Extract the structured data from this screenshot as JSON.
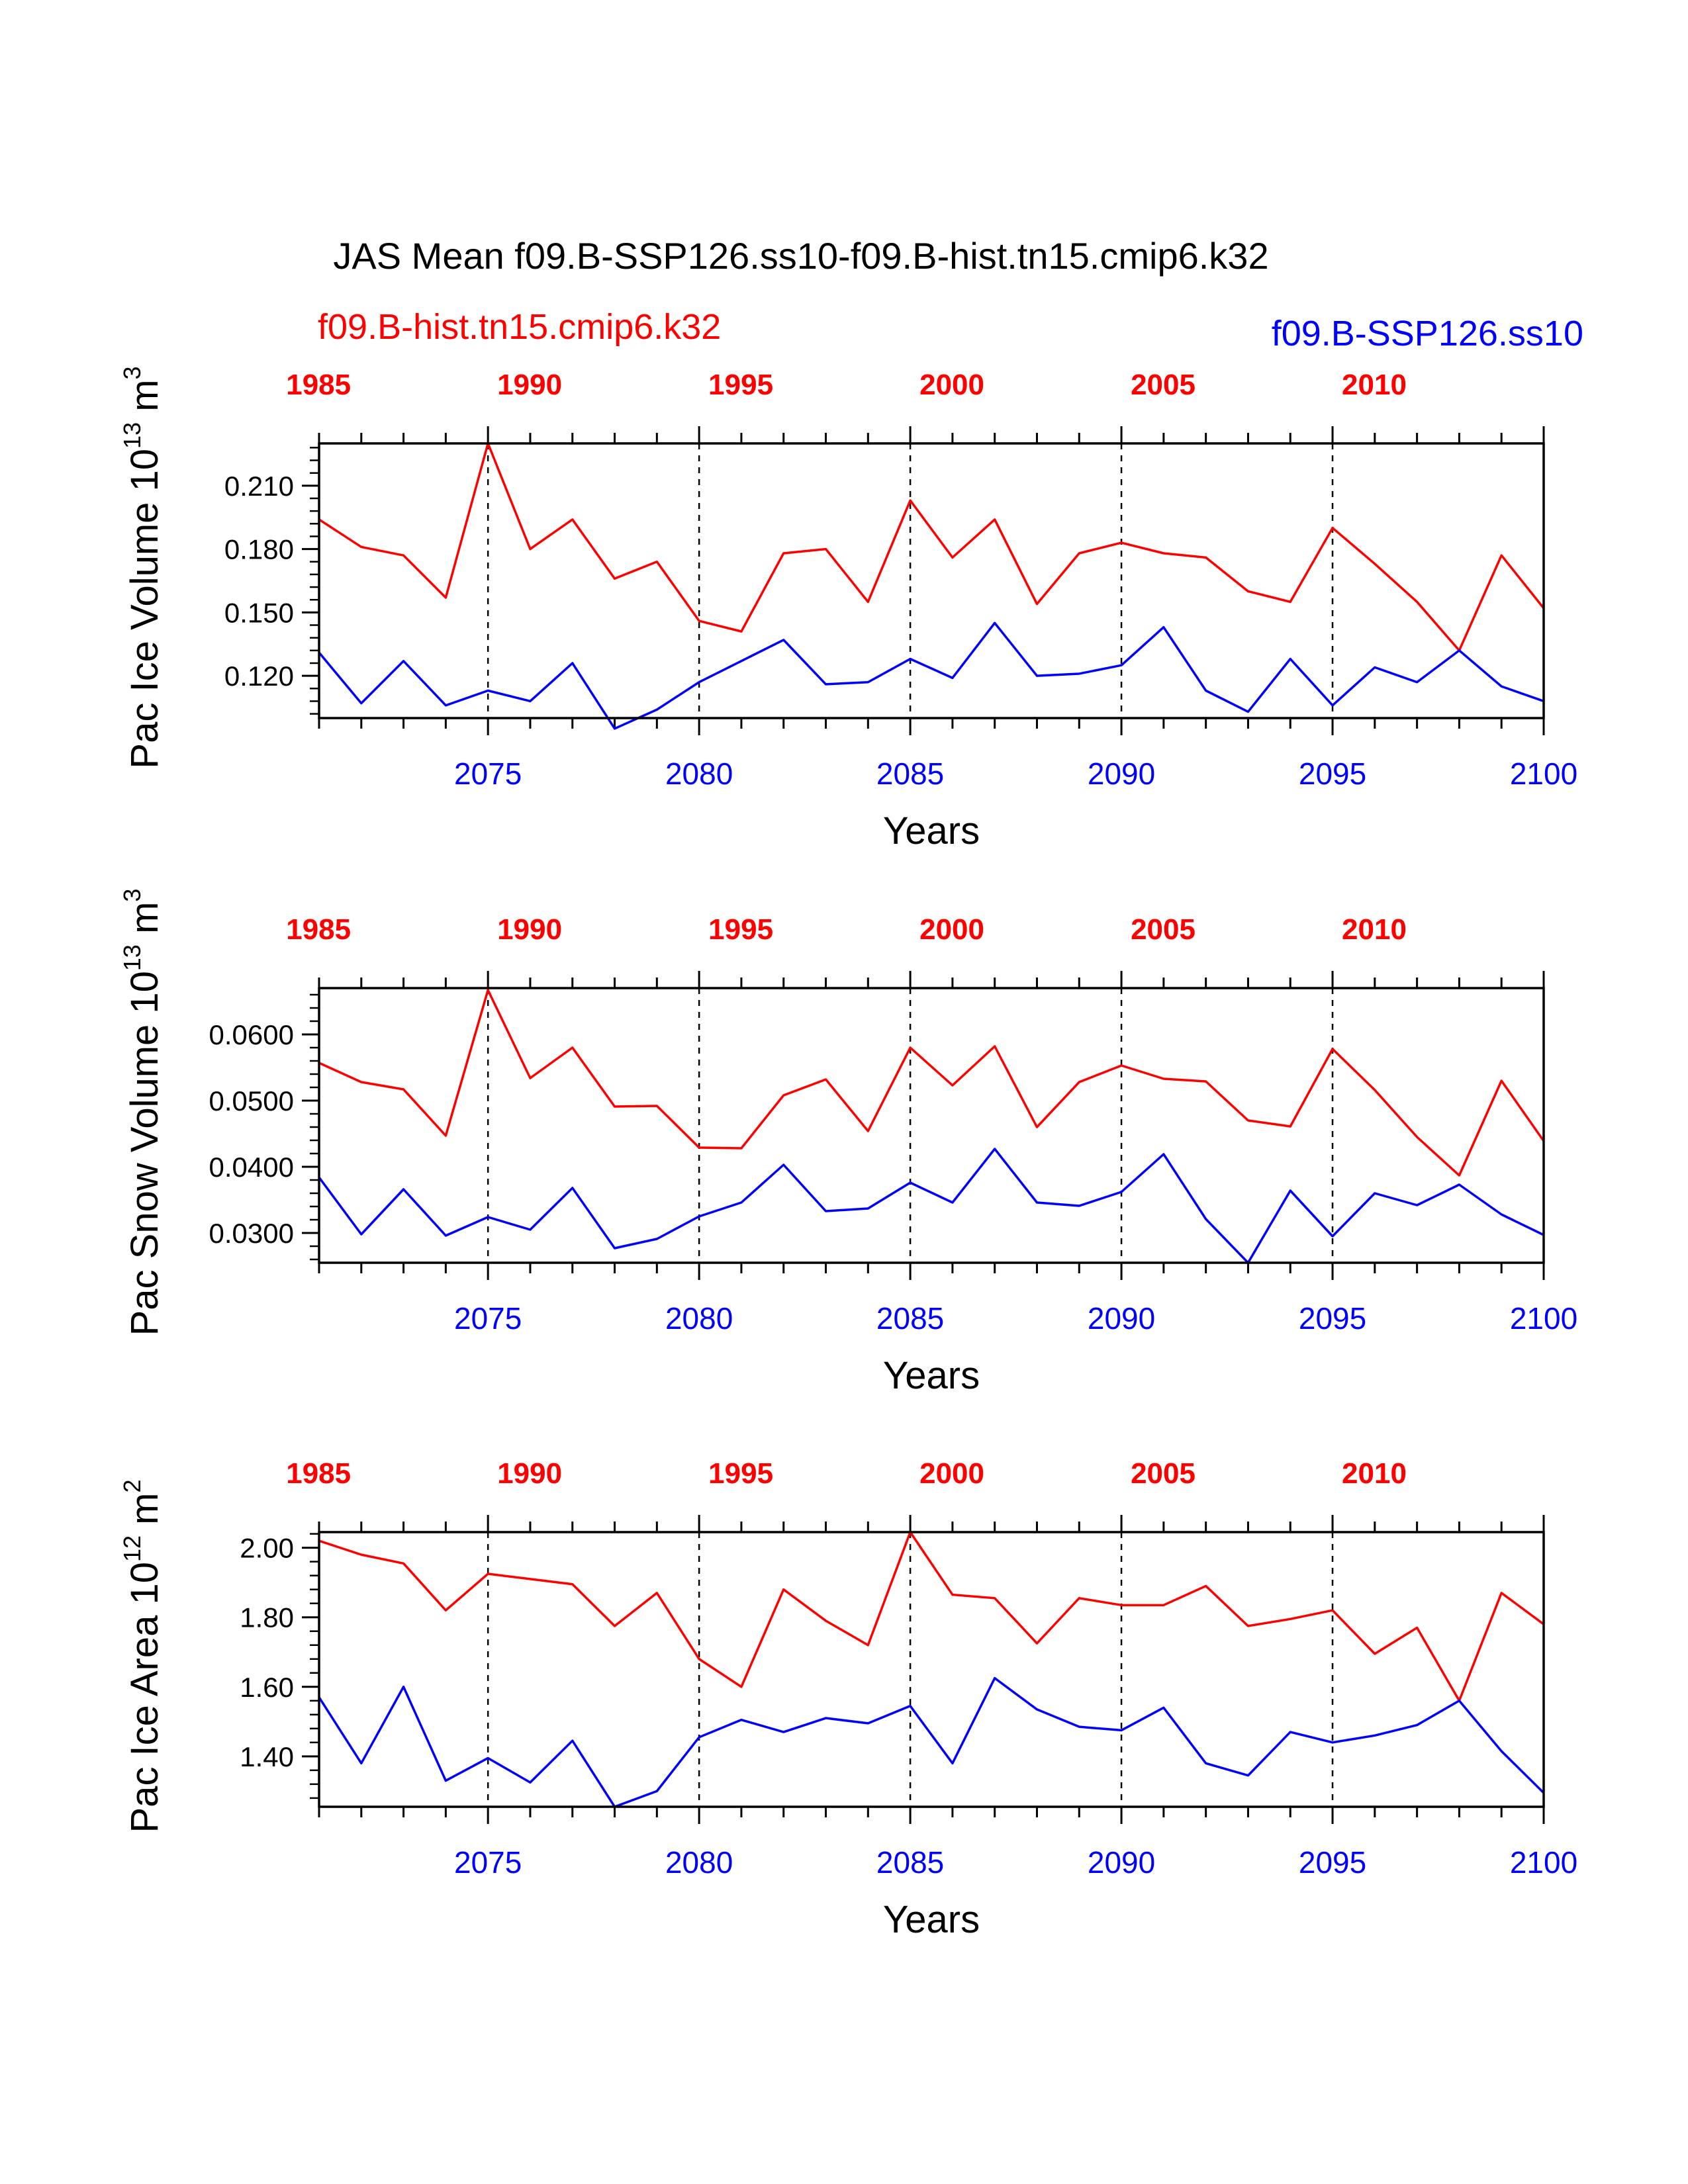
{
  "colors": {
    "hist": "#ff0000",
    "ssp": "#0000ff",
    "axis": "#000000"
  },
  "header": {
    "title": "JAS Mean f09.B-SSP126.ss10-f09.B-hist.tn15.cmip6.k32",
    "hist_label": "f09.B-hist.tn15.cmip6.k32",
    "ssp_label": "f09.B-SSP126.ss10"
  },
  "chart_data": [
    {
      "type": "line",
      "ylabel": {
        "base": "Pac Ice Volume 10",
        "exp": "13",
        "unit": " m",
        "unit_exp": "3"
      },
      "xlabel": "Years",
      "x_bottom": [
        2071,
        2072,
        2073,
        2074,
        2075,
        2076,
        2077,
        2078,
        2079,
        2080,
        2081,
        2082,
        2083,
        2084,
        2085,
        2086,
        2087,
        2088,
        2089,
        2090,
        2091,
        2092,
        2093,
        2094,
        2095,
        2096,
        2097,
        2098,
        2099,
        2100
      ],
      "x_bottom_ticks": [
        "2075",
        "2080",
        "2085",
        "2090",
        "2095",
        "2100"
      ],
      "x_top_ticks": [
        "1985",
        "1990",
        "1995",
        "2000",
        "2005",
        "2010"
      ],
      "ylim": [
        0.1,
        0.23
      ],
      "yticks": [
        "0.120",
        "0.150",
        "0.180",
        "0.210"
      ],
      "series": [
        {
          "name": "f09.B-hist.tn15.cmip6.k32",
          "values": [
            0.194,
            0.181,
            0.177,
            0.157,
            0.23,
            0.18,
            0.194,
            0.166,
            0.174,
            0.146,
            0.141,
            0.178,
            0.18,
            0.155,
            0.203,
            0.176,
            0.194,
            0.154,
            0.178,
            0.183,
            0.178,
            0.176,
            0.16,
            0.155,
            0.19,
            0.173,
            0.155,
            0.132,
            0.177,
            0.152
          ]
        },
        {
          "name": "f09.B-SSP126.ss10",
          "values": [
            0.131,
            0.107,
            0.127,
            0.106,
            0.113,
            0.108,
            0.126,
            0.095,
            0.104,
            0.117,
            0.127,
            0.137,
            0.116,
            0.117,
            0.128,
            0.119,
            0.145,
            0.12,
            0.121,
            0.125,
            0.143,
            0.113,
            0.103,
            0.128,
            0.106,
            0.124,
            0.117,
            0.132,
            0.115,
            0.108
          ]
        }
      ]
    },
    {
      "type": "line",
      "ylabel": {
        "base": "Pac Snow Volume 10",
        "exp": "13",
        "unit": " m",
        "unit_exp": "3"
      },
      "xlabel": "Years",
      "x_bottom": [
        2071,
        2072,
        2073,
        2074,
        2075,
        2076,
        2077,
        2078,
        2079,
        2080,
        2081,
        2082,
        2083,
        2084,
        2085,
        2086,
        2087,
        2088,
        2089,
        2090,
        2091,
        2092,
        2093,
        2094,
        2095,
        2096,
        2097,
        2098,
        2099,
        2100
      ],
      "x_bottom_ticks": [
        "2075",
        "2080",
        "2085",
        "2090",
        "2095",
        "2100"
      ],
      "x_top_ticks": [
        "1985",
        "1990",
        "1995",
        "2000",
        "2005",
        "2010"
      ],
      "ylim": [
        0.0255,
        0.067
      ],
      "yticks": [
        "0.0300",
        "0.0400",
        "0.0500",
        "0.0600"
      ],
      "series": [
        {
          "name": "f09.B-hist.tn15.cmip6.k32",
          "values": [
            0.0557,
            0.0528,
            0.0517,
            0.0447,
            0.0667,
            0.0534,
            0.058,
            0.0491,
            0.0492,
            0.0429,
            0.0428,
            0.0508,
            0.0532,
            0.0454,
            0.058,
            0.0523,
            0.0582,
            0.046,
            0.0528,
            0.0553,
            0.0533,
            0.0529,
            0.047,
            0.0461,
            0.0578,
            0.0516,
            0.0445,
            0.0387,
            0.053,
            0.0439
          ]
        },
        {
          "name": "f09.B-SSP126.ss10",
          "values": [
            0.0384,
            0.0298,
            0.0366,
            0.0296,
            0.0324,
            0.0305,
            0.0368,
            0.0277,
            0.0291,
            0.0325,
            0.0346,
            0.0403,
            0.0333,
            0.0337,
            0.0376,
            0.0346,
            0.0427,
            0.0346,
            0.0341,
            0.0362,
            0.0419,
            0.0321,
            0.0255,
            0.0364,
            0.0295,
            0.036,
            0.0342,
            0.0373,
            0.0328,
            0.0297
          ]
        }
      ]
    },
    {
      "type": "line",
      "ylabel": {
        "base": "Pac Ice Area 10",
        "exp": "12",
        "unit": " m",
        "unit_exp": "2"
      },
      "xlabel": "Years",
      "x_bottom": [
        2071,
        2072,
        2073,
        2074,
        2075,
        2076,
        2077,
        2078,
        2079,
        2080,
        2081,
        2082,
        2083,
        2084,
        2085,
        2086,
        2087,
        2088,
        2089,
        2090,
        2091,
        2092,
        2093,
        2094,
        2095,
        2096,
        2097,
        2098,
        2099,
        2100
      ],
      "x_bottom_ticks": [
        "2075",
        "2080",
        "2085",
        "2090",
        "2095",
        "2100"
      ],
      "x_top_ticks": [
        "1985",
        "1990",
        "1995",
        "2000",
        "2005",
        "2010"
      ],
      "ylim": [
        1.255,
        2.045
      ],
      "yticks": [
        "1.40",
        "1.60",
        "1.80",
        "2.00"
      ],
      "series": [
        {
          "name": "f09.B-hist.tn15.cmip6.k32",
          "values": [
            2.02,
            1.98,
            1.955,
            1.82,
            1.925,
            1.91,
            1.895,
            1.775,
            1.87,
            1.68,
            1.6,
            1.88,
            1.79,
            1.72,
            2.045,
            1.865,
            1.855,
            1.725,
            1.855,
            1.835,
            1.835,
            1.89,
            1.775,
            1.795,
            1.82,
            1.695,
            1.77,
            1.56,
            1.87,
            1.78
          ]
        },
        {
          "name": "f09.B-SSP126.ss10",
          "values": [
            1.57,
            1.38,
            1.6,
            1.33,
            1.395,
            1.325,
            1.445,
            1.255,
            1.3,
            1.455,
            1.505,
            1.47,
            1.51,
            1.495,
            1.545,
            1.38,
            1.625,
            1.535,
            1.485,
            1.475,
            1.54,
            1.38,
            1.345,
            1.47,
            1.44,
            1.46,
            1.49,
            1.56,
            1.415,
            1.295
          ]
        }
      ]
    }
  ]
}
